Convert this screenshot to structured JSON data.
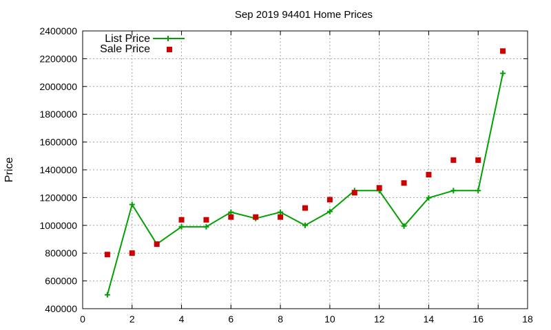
{
  "chart_data": {
    "type": "line",
    "title": "Sep 2019 94401 Home Prices",
    "xlabel": "",
    "ylabel": "Price",
    "xlim": [
      0,
      18
    ],
    "ylim": [
      400000,
      2400000
    ],
    "x_ticks": [
      0,
      2,
      4,
      6,
      8,
      10,
      12,
      14,
      16,
      18
    ],
    "y_ticks": [
      400000,
      600000,
      800000,
      1000000,
      1200000,
      1400000,
      1600000,
      1800000,
      2000000,
      2200000,
      2400000
    ],
    "x_tick_labels": [
      "0",
      "2",
      "4",
      "6",
      "8",
      "10",
      "12",
      "14",
      "16",
      "18"
    ],
    "y_tick_labels": [
      "400000",
      "600000",
      "800000",
      "1000000",
      "1200000",
      "1400000",
      "1600000",
      "1800000",
      "2000000",
      "2200000",
      "2400000"
    ],
    "grid": true,
    "legend_position": "top-left",
    "series": [
      {
        "name": "List Price",
        "kind": "line-with-markers",
        "color": "#00a000",
        "marker": "plus",
        "x": [
          1,
          2,
          3,
          4,
          5,
          6,
          7,
          8,
          9,
          10,
          11,
          12,
          13,
          14,
          15,
          16,
          17
        ],
        "values": [
          500000,
          1150000,
          865000,
          990000,
          990000,
          1095000,
          1050000,
          1095000,
          1000000,
          1100000,
          1250000,
          1250000,
          995000,
          1198000,
          1250000,
          1250000,
          2095000
        ]
      },
      {
        "name": "Sale Price",
        "kind": "points",
        "color": "#cc0000",
        "marker": "square",
        "x": [
          1,
          2,
          3,
          4,
          5,
          6,
          7,
          8,
          9,
          10,
          11,
          12,
          13,
          14,
          15,
          16,
          17
        ],
        "values": [
          790000,
          800000,
          865000,
          1040000,
          1040000,
          1060000,
          1060000,
          1060000,
          1125000,
          1185000,
          1235000,
          1270000,
          1305000,
          1365000,
          1470000,
          1470000,
          2255000
        ]
      }
    ]
  }
}
